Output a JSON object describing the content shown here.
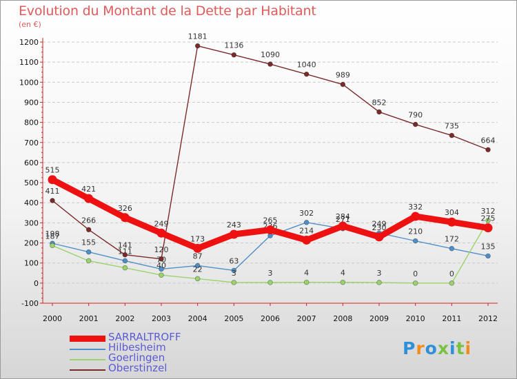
{
  "header": {
    "title": "Evolution du Montant de la Dette par Habitant",
    "unit": "(en €)"
  },
  "chart_data": {
    "type": "line",
    "title": "Evolution du Montant de la Dette par Habitant",
    "ylabel": "(en €)",
    "ylim": [
      -100,
      1200
    ],
    "ytick_step": 100,
    "x": [
      2000,
      2001,
      2002,
      2003,
      2004,
      2005,
      2006,
      2007,
      2008,
      2009,
      2010,
      2011,
      2012
    ],
    "legend_position": "bottom-left",
    "series": [
      {
        "name": "Hilbesheim",
        "color": "#4f8fc8",
        "values": [
          198,
          155,
          111,
          70,
          87,
          63,
          236,
          302,
          271,
          249,
          210,
          172,
          135
        ],
        "labels": [
          "198",
          "155",
          "111",
          "70",
          "87",
          "63",
          "236",
          "302",
          "271",
          "249",
          "210",
          "172",
          "135"
        ]
      },
      {
        "name": "Goerlingen",
        "color": "#9ad36b",
        "values": [
          187,
          111,
          76,
          40,
          22,
          3,
          3,
          4,
          4,
          3,
          0,
          0,
          312
        ],
        "labels": [
          "187",
          "",
          "",
          "40",
          "22",
          "3",
          "3",
          "4",
          "4",
          "3",
          "0",
          "0",
          "312"
        ]
      },
      {
        "name": "Oberstinzel",
        "color": "#7b2a2a",
        "values": [
          411,
          266,
          141,
          120,
          1181,
          1136,
          1090,
          1040,
          989,
          852,
          790,
          735,
          664
        ],
        "labels": [
          "411",
          "266",
          "141",
          "120",
          "1181",
          "1136",
          "1090",
          "1040",
          "989",
          "852",
          "790",
          "735",
          "664"
        ]
      },
      {
        "name": "SARRALTROFF",
        "color": "#ee1111",
        "values": [
          515,
          421,
          326,
          249,
          173,
          243,
          265,
          214,
          284,
          230,
          332,
          304,
          275
        ],
        "labels": [
          "515",
          "421",
          "326",
          "249",
          "173",
          "243",
          "265",
          "214",
          "284",
          "230",
          "332",
          "304",
          "275"
        ]
      }
    ]
  },
  "legend": {
    "items": [
      {
        "name": "SARRALTROFF",
        "color": "#ee1111"
      },
      {
        "name": "Hilbesheim",
        "color": "#4f8fc8"
      },
      {
        "name": "Goerlingen",
        "color": "#9ad36b"
      },
      {
        "name": "Oberstinzel",
        "color": "#7b2a2a"
      }
    ]
  },
  "logo": {
    "text": "Proxiti",
    "colors": [
      "#2f8fd8",
      "#f28c1e",
      "#2f8fd8",
      "#7ac142",
      "#2f8fd8",
      "#7ac142",
      "#f28c1e"
    ]
  }
}
